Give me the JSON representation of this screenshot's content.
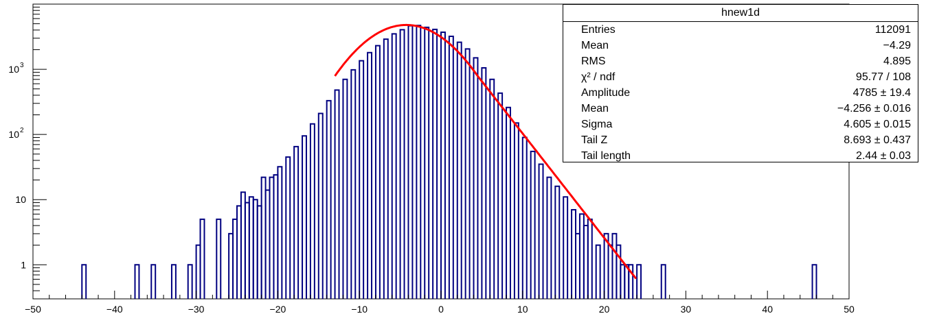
{
  "chart_data": {
    "type": "histogram",
    "title": "",
    "xlabel": "",
    "ylabel": "",
    "xlim": [
      -50,
      50
    ],
    "ylim": [
      0.3,
      10000
    ],
    "yscale": "log",
    "x_ticks": [
      -50,
      -40,
      -30,
      -20,
      -10,
      0,
      10,
      20,
      30,
      40,
      50
    ],
    "x_tick_labels": [
      "−50",
      "−40",
      "−30",
      "−20",
      "−10",
      "0",
      "10",
      "20",
      "30",
      "40",
      "50"
    ],
    "y_ticks": [
      {
        "value": 1,
        "label": "1"
      },
      {
        "value": 10,
        "label": "10"
      },
      {
        "value": 100,
        "base": "10",
        "exp": "2"
      },
      {
        "value": 1000,
        "base": "10",
        "exp": "3"
      }
    ],
    "bin_width": 0.5,
    "series": [
      {
        "name": "hnew1d",
        "color": "#000080",
        "bins": [
          [
            -44,
            1
          ],
          [
            -37.5,
            1
          ],
          [
            -35.5,
            1
          ],
          [
            -33,
            1
          ],
          [
            -31,
            1
          ],
          [
            -30,
            2
          ],
          [
            -29.5,
            5
          ],
          [
            -27.5,
            5
          ],
          [
            -26,
            3
          ],
          [
            -25.5,
            5
          ],
          [
            -25,
            8
          ],
          [
            -24.5,
            13
          ],
          [
            -24,
            9
          ],
          [
            -23.5,
            11
          ],
          [
            -23,
            10
          ],
          [
            -22.5,
            8
          ],
          [
            -22,
            22
          ],
          [
            -21.5,
            14
          ],
          [
            -21,
            22
          ],
          [
            -20.5,
            24
          ],
          [
            -20,
            32
          ],
          [
            -19,
            45
          ],
          [
            -18,
            65
          ],
          [
            -17,
            95
          ],
          [
            -16,
            145
          ],
          [
            -15,
            210
          ],
          [
            -14,
            330
          ],
          [
            -13,
            480
          ],
          [
            -12,
            700
          ],
          [
            -11,
            980
          ],
          [
            -10,
            1350
          ],
          [
            -9,
            1800
          ],
          [
            -8,
            2300
          ],
          [
            -7,
            2900
          ],
          [
            -6,
            3500
          ],
          [
            -5,
            4050
          ],
          [
            -4,
            4650
          ],
          [
            -3,
            4700
          ],
          [
            -2,
            4400
          ],
          [
            -1,
            4100
          ],
          [
            0,
            3700
          ],
          [
            1,
            3200
          ],
          [
            2,
            2600
          ],
          [
            3,
            2050
          ],
          [
            4,
            1500
          ],
          [
            5,
            1050
          ],
          [
            6,
            700
          ],
          [
            7,
            430
          ],
          [
            8,
            260
          ],
          [
            9,
            150
          ],
          [
            10,
            90
          ],
          [
            11,
            55
          ],
          [
            12,
            35
          ],
          [
            13,
            22
          ],
          [
            14,
            16
          ],
          [
            15,
            11
          ],
          [
            16,
            7
          ],
          [
            16.5,
            3
          ],
          [
            17,
            6
          ],
          [
            17.5,
            4
          ],
          [
            18,
            5
          ],
          [
            19,
            2
          ],
          [
            20,
            3
          ],
          [
            20.5,
            2
          ],
          [
            21,
            3
          ],
          [
            21.5,
            2
          ],
          [
            22,
            1
          ],
          [
            22.5,
            1
          ],
          [
            23,
            1
          ],
          [
            24,
            1
          ],
          [
            27,
            1
          ],
          [
            45.5,
            1
          ]
        ]
      }
    ],
    "fit": {
      "color": "#ff0000",
      "x_range": [
        -13,
        24
      ],
      "amplitude": 4785,
      "mean": -4.256,
      "sigma": 4.605,
      "tail_z": 8.693,
      "tail_length": 2.44
    }
  },
  "stats": {
    "title": "hnew1d",
    "rows": [
      {
        "key": "Entries",
        "value": "112091"
      },
      {
        "key": "Mean",
        "value": "−4.29"
      },
      {
        "key": "RMS",
        "value": "4.895"
      },
      {
        "key": "χ² / ndf",
        "value": "95.77 / 108"
      },
      {
        "key": "Amplitude",
        "value": "4785 ± 19.4"
      },
      {
        "key": "Mean",
        "value": "−4.256 ± 0.016"
      },
      {
        "key": "Sigma",
        "value": "4.605 ± 0.015"
      },
      {
        "key": "Tail Z",
        "value": "8.693 ± 0.437"
      },
      {
        "key": "Tail length",
        "value": "2.44 ± 0.03"
      }
    ]
  }
}
